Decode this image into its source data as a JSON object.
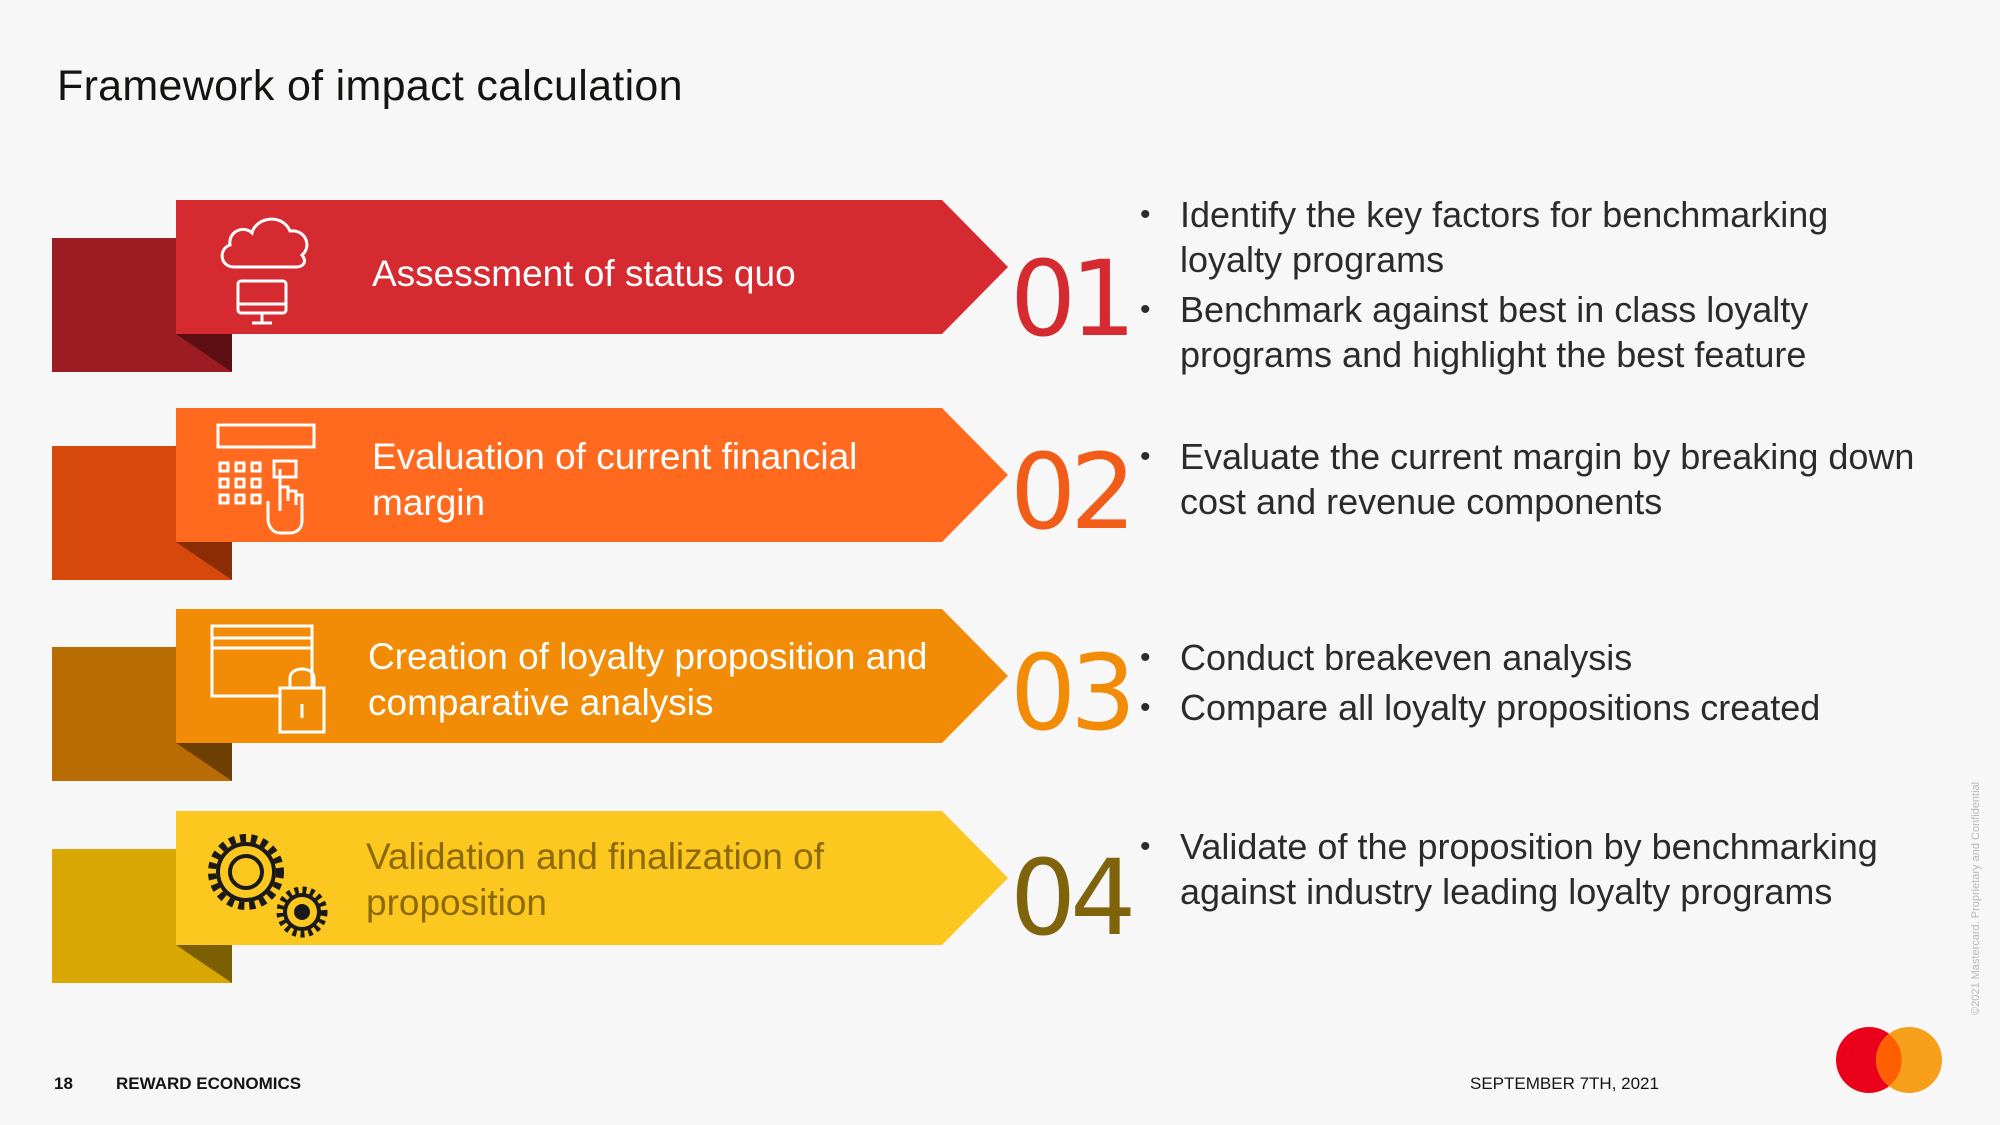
{
  "page": {
    "title": "Framework of impact calculation"
  },
  "steps": [
    {
      "number": "01",
      "label": "Assessment of status quo",
      "icon": "cloud-computer-icon",
      "colors": {
        "main": "#d42a30",
        "back": "#9b1c23",
        "fold": "#5e0f14",
        "number": "#d42a30",
        "label": "#ffffff"
      },
      "bullets": [
        "Identify the key factors for benchmarking loyalty programs",
        "Benchmark against best in class loyalty programs and highlight the best feature"
      ]
    },
    {
      "number": "02",
      "label": "Evaluation of current financial margin",
      "icon": "keypad-touch-icon",
      "colors": {
        "main": "#ff6a1f",
        "back": "#d6490a",
        "fold": "#8a2d05",
        "number": "#f25c19",
        "label": "#ffffff"
      },
      "bullets": [
        "Evaluate the current margin by breaking down cost and revenue components"
      ]
    },
    {
      "number": "03",
      "label": "Creation of loyalty proposition and comparative analysis",
      "icon": "card-lock-icon",
      "colors": {
        "main": "#f28b06",
        "back": "#b96c04",
        "fold": "#6e3f02",
        "number": "#f28b06",
        "label": "#ffffff"
      },
      "bullets": [
        "Conduct breakeven analysis",
        "Compare all loyalty propositions created"
      ]
    },
    {
      "number": "04",
      "label": "Validation and finalization of proposition",
      "icon": "gears-icon",
      "colors": {
        "main": "#fcc71f",
        "back": "#d9a704",
        "fold": "#7c5f02",
        "number": "#7f640b",
        "label": "#8b6a06"
      },
      "bullets": [
        "Validate of the proposition by benchmarking against industry leading loyalty programs"
      ]
    }
  ],
  "footer": {
    "page_number": "18",
    "section": "REWARD ECONOMICS",
    "date": "SEPTEMBER 7TH, 2021",
    "copyright": "©2021 Mastercard. Proprietary and Confidential"
  },
  "logo": {
    "name": "mastercard-logo-icon",
    "red": "#eb001b",
    "orange": "#f79e1b"
  }
}
